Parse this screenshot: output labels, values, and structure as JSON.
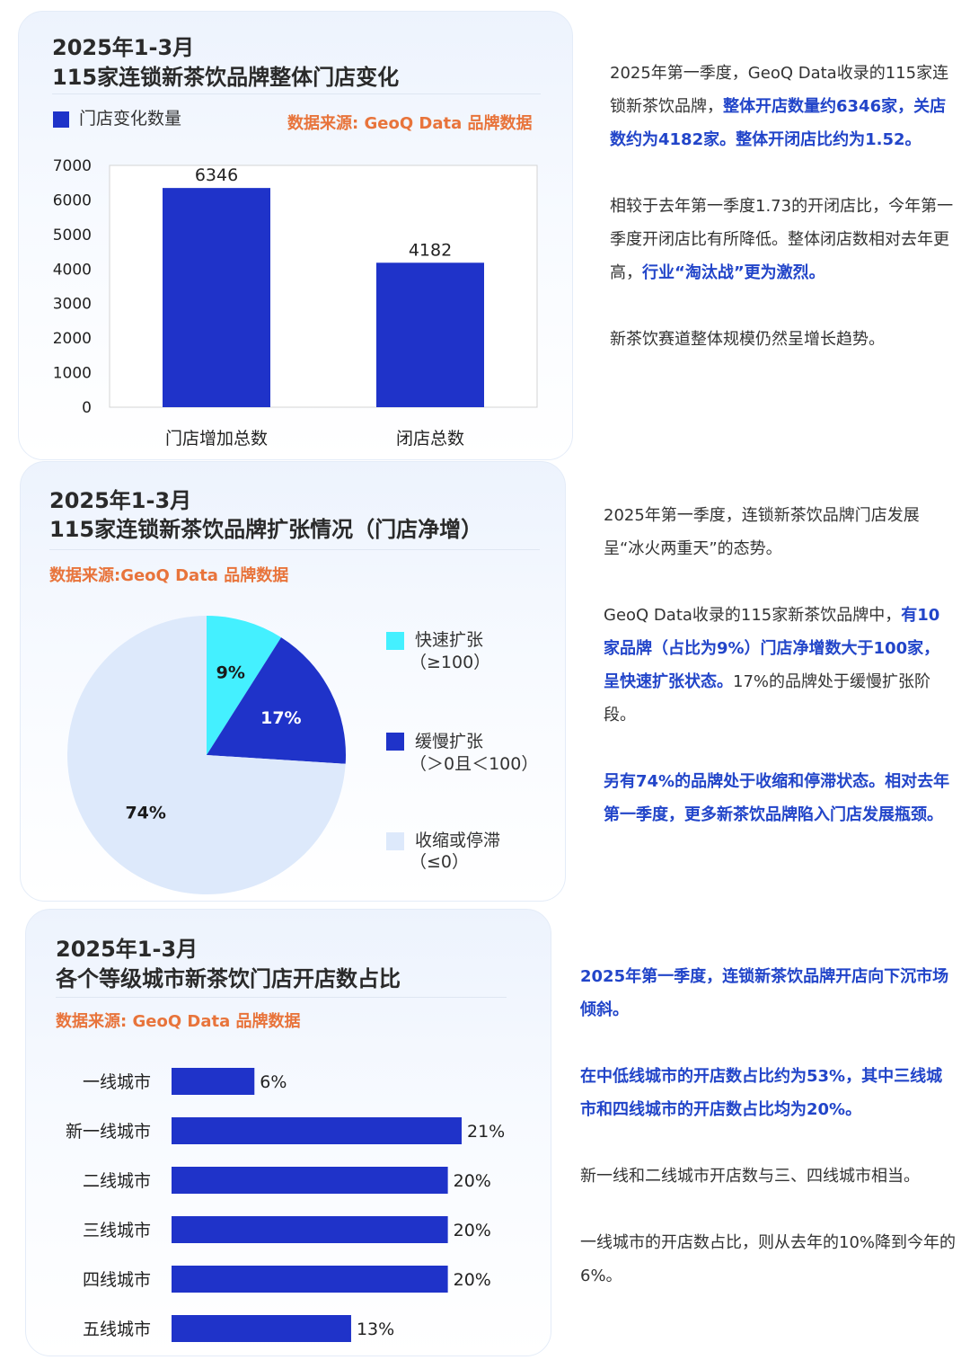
{
  "section1": {
    "date": "2025年1-3月",
    "title": "115家连锁新茶饮品牌整体门店变化",
    "legend": "门店变化数量",
    "source": "数据来源: GeoQ Data 品牌数据",
    "colors": {
      "bar": "#1f33c9"
    },
    "text": [
      [
        {
          "t": "2025年第一季度，GeoQ Data收录的115家连锁新茶饮品牌，",
          "h": false
        },
        {
          "t": "整体开店数量约6346家，关店数约为4182家。整体开闭店比约为1.52。",
          "h": true
        }
      ],
      [
        {
          "t": "相较于去年第一季度1.73的开闭店比，今年第一季度开闭店比有所降低。整体闭店数相对去年更高，",
          "h": false
        },
        {
          "t": "行业“淘汰战”更为激烈。",
          "h": true
        }
      ],
      [
        {
          "t": "新茶饮赛道整体规模仍然呈增长趋势。",
          "h": false
        }
      ]
    ]
  },
  "section2": {
    "date": "2025年1-3月",
    "title": "115家连锁新茶饮品牌扩张情况（门店净增）",
    "source": "数据来源:GeoQ Data 品牌数据",
    "colors": {
      "fast": "#44f0ff",
      "slow": "#1f33c9",
      "shrink": "#dde9fb"
    },
    "legend": [
      {
        "l1": "快速扩张",
        "l2": "（≥100）"
      },
      {
        "l1": "缓慢扩张",
        "l2": "（＞0且＜100）"
      },
      {
        "l1": "收缩或停滞",
        "l2": "（≤0）"
      }
    ],
    "text": [
      [
        {
          "t": "2025年第一季度，连锁新茶饮品牌门店发展呈“冰火两重天”的态势。",
          "h": false
        }
      ],
      [
        {
          "t": "GeoQ Data收录的115家新茶饮品牌中，",
          "h": false
        },
        {
          "t": "有10家品牌（占比为9%）门店净增数大于100家，呈快速扩张状态。",
          "h": true
        },
        {
          "t": "17%的品牌处于缓慢扩张阶段。",
          "h": false
        }
      ],
      [
        {
          "t": "另有74%的品牌处于收缩和停滞状态。相对去年第一季度，更多新茶饮品牌陷入门店发展瓶颈。",
          "h": true
        }
      ]
    ]
  },
  "section3": {
    "date": "2025年1-3月",
    "title": "各个等级城市新茶饮门店开店数占比",
    "source": "数据来源: GeoQ Data 品牌数据",
    "colors": {
      "bar": "#1f33c9"
    },
    "text": [
      [
        {
          "t": "2025年第一季度，连锁新茶饮品牌开店向下沉市场倾斜。",
          "h": true
        }
      ],
      [
        {
          "t": "在中低线城市的开店数占比约为53%，其中三线城市和四线城市的开店数占比均为20%。",
          "h": true
        }
      ],
      [
        {
          "t": "新一线和二线城市开店数与三、四线城市相当。",
          "h": false
        }
      ],
      [
        {
          "t": "一线城市的开店数占比，则从去年的10%降到今年的6%。",
          "h": false
        }
      ]
    ]
  },
  "chart_data": [
    {
      "type": "bar",
      "title": "115家连锁新茶饮品牌整体门店变化",
      "categories": [
        "门店增加总数",
        "闭店总数"
      ],
      "series": [
        {
          "name": "门店变化数量",
          "values": [
            6346,
            4182
          ]
        }
      ],
      "ylim": [
        0,
        7000
      ],
      "yticks": [
        0,
        1000,
        2000,
        3000,
        4000,
        5000,
        6000,
        7000
      ],
      "data_labels": [
        "6346",
        "4182"
      ],
      "legend_position": "top-left"
    },
    {
      "type": "pie",
      "title": "115家连锁新茶饮品牌扩张情况（门店净增）",
      "slices": [
        {
          "label": "快速扩张（≥100）",
          "value": 9,
          "display": "9%",
          "color": "#44f0ff",
          "text_color": "#1a1a1a"
        },
        {
          "label": "缓慢扩张（＞0且＜100）",
          "value": 17,
          "display": "17%",
          "color": "#1f33c9",
          "text_color": "#ffffff"
        },
        {
          "label": "收缩或停滞（≤0）",
          "value": 74,
          "display": "74%",
          "color": "#dde9fb",
          "text_color": "#1a1a1a"
        }
      ],
      "legend_position": "right"
    },
    {
      "type": "bar",
      "orientation": "horizontal",
      "title": "各个等级城市新茶饮门店开店数占比",
      "categories": [
        "一线城市",
        "新一线城市",
        "二线城市",
        "三线城市",
        "四线城市",
        "五线城市"
      ],
      "values": [
        6,
        21,
        20,
        20,
        20,
        13
      ],
      "data_labels": [
        "6%",
        "21%",
        "20%",
        "20%",
        "20%",
        "13%"
      ],
      "xlim": [
        0,
        21
      ]
    }
  ]
}
